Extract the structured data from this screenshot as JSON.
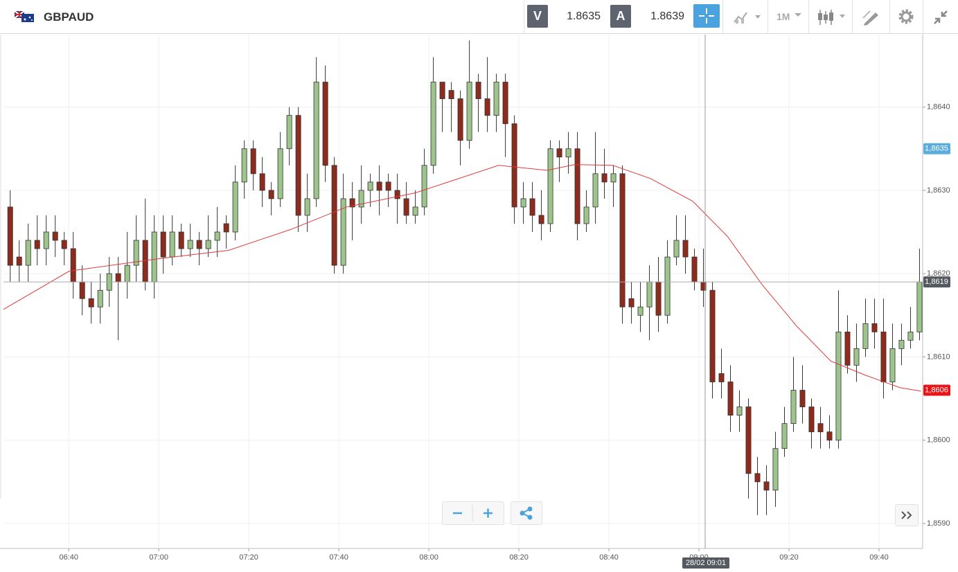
{
  "header": {
    "symbol": "GBPAUD",
    "sell_label": "V",
    "sell_price": 1.8635,
    "buy_label": "A",
    "buy_price": 1.8639,
    "timeframe": "1M"
  },
  "chart_data": {
    "type": "candlestick",
    "x": [
      387,
      389,
      391,
      393,
      395,
      397,
      399,
      401,
      403,
      405,
      407,
      409,
      411,
      413,
      415,
      417,
      419,
      421,
      423,
      425,
      427,
      429,
      431,
      433,
      435,
      437,
      439,
      441,
      443,
      445,
      447,
      449,
      451,
      453,
      455,
      457,
      459,
      461,
      463,
      465,
      467,
      469,
      471,
      473,
      475,
      477,
      479,
      481,
      483,
      485,
      487,
      489,
      491,
      493,
      495,
      497,
      499,
      501,
      503,
      505,
      507,
      509,
      511,
      513,
      515,
      517,
      519,
      521,
      523,
      525,
      527,
      529,
      531,
      533,
      535,
      537,
      539,
      541,
      543,
      545,
      547,
      549,
      551,
      553,
      555,
      557,
      559,
      561,
      563,
      565,
      567,
      569,
      571,
      573,
      575,
      577,
      579,
      581,
      583,
      585,
      587,
      589
    ],
    "open": [
      1.8628,
      1.8622,
      1.8621,
      1.8624,
      1.8623,
      1.8625,
      1.8624,
      1.8623,
      1.8619,
      1.8617,
      1.8616,
      1.8618,
      1.862,
      1.8619,
      1.8621,
      1.8624,
      1.8619,
      1.8625,
      1.8622,
      1.8625,
      1.8623,
      1.8624,
      1.8623,
      1.8624,
      1.8626,
      1.8625,
      1.8631,
      1.8635,
      1.8632,
      1.863,
      1.8629,
      1.8635,
      1.8639,
      1.8627,
      1.8629,
      1.8643,
      1.8633,
      1.8621,
      1.8629,
      1.8628,
      1.863,
      1.8631,
      1.8631,
      1.863,
      1.8629,
      1.8627,
      1.8628,
      1.8633,
      1.8643,
      1.8642,
      1.8641,
      1.8636,
      1.8643,
      1.8641,
      1.8639,
      1.8643,
      1.8638,
      1.8628,
      1.8629,
      1.8627,
      1.8626,
      1.8635,
      1.8634,
      1.8635,
      1.8626,
      1.8628,
      1.8632,
      1.8631,
      1.8632,
      1.8617,
      1.8615,
      1.8616,
      1.8619,
      1.8615,
      1.8622,
      1.8624,
      1.8622,
      1.8619,
      1.8618,
      1.8608,
      1.8607,
      1.8603,
      1.8604,
      1.8596,
      1.8595,
      1.8594,
      1.8599,
      1.8602,
      1.8606,
      1.8604,
      1.8602,
      1.8601,
      1.86,
      1.8613,
      1.8609,
      1.8611,
      1.8614,
      1.8613,
      1.8607,
      1.8611,
      1.8612,
      1.8613
    ],
    "high": [
      1.863,
      1.8624,
      1.8626,
      1.8627,
      1.8627,
      1.8627,
      1.8625,
      1.8625,
      1.8621,
      1.8619,
      1.862,
      1.8622,
      1.8622,
      1.8625,
      1.8627,
      1.8629,
      1.8627,
      1.8627,
      1.8627,
      1.8626,
      1.8626,
      1.8625,
      1.8627,
      1.8628,
      1.8627,
      1.8633,
      1.8636,
      1.8636,
      1.8634,
      1.8631,
      1.8637,
      1.864,
      1.864,
      1.8632,
      1.8646,
      1.8645,
      1.8634,
      1.8632,
      1.8631,
      1.8633,
      1.8632,
      1.8633,
      1.8632,
      1.8632,
      1.8631,
      1.863,
      1.8635,
      1.8646,
      1.8643,
      1.8643,
      1.8642,
      1.8648,
      1.8644,
      1.8646,
      1.8644,
      1.8644,
      1.8639,
      1.8631,
      1.8631,
      1.863,
      1.8636,
      1.8636,
      1.8637,
      1.8637,
      1.863,
      1.8637,
      1.8635,
      1.8633,
      1.8633,
      1.8619,
      1.8619,
      1.8621,
      1.8622,
      1.8624,
      1.8627,
      1.8627,
      1.8623,
      1.8623,
      1.8619,
      1.8611,
      1.8609,
      1.8606,
      1.8605,
      1.8598,
      1.8597,
      1.8601,
      1.8604,
      1.861,
      1.8609,
      1.8605,
      1.8604,
      1.8603,
      1.8618,
      1.8615,
      1.8614,
      1.8617,
      1.8617,
      1.8617,
      1.8614,
      1.8614,
      1.8616,
      1.8623
    ],
    "low": [
      1.8619,
      1.8619,
      1.8619,
      1.8621,
      1.8621,
      1.8622,
      1.8621,
      1.8617,
      1.8615,
      1.8614,
      1.8614,
      1.8616,
      1.8612,
      1.8617,
      1.8619,
      1.8618,
      1.8617,
      1.862,
      1.8621,
      1.8622,
      1.8622,
      1.8621,
      1.8622,
      1.8622,
      1.8623,
      1.8624,
      1.8629,
      1.863,
      1.8628,
      1.8627,
      1.8628,
      1.8633,
      1.8625,
      1.8625,
      1.8628,
      1.8631,
      1.862,
      1.862,
      1.8624,
      1.8626,
      1.8628,
      1.8627,
      1.8628,
      1.8626,
      1.8626,
      1.8626,
      1.8627,
      1.8632,
      1.8637,
      1.8637,
      1.8633,
      1.8635,
      1.8637,
      1.8637,
      1.8637,
      1.8634,
      1.8626,
      1.8626,
      1.8625,
      1.8624,
      1.8625,
      1.8631,
      1.8632,
      1.8624,
      1.8625,
      1.8626,
      1.8629,
      1.8628,
      1.8614,
      1.8614,
      1.8613,
      1.8612,
      1.8613,
      1.8614,
      1.8621,
      1.862,
      1.8618,
      1.8616,
      1.8605,
      1.8605,
      1.8601,
      1.8601,
      1.8593,
      1.8591,
      1.8591,
      1.8592,
      1.8598,
      1.8601,
      1.8602,
      1.8599,
      1.8599,
      1.8599,
      1.8599,
      1.8608,
      1.8607,
      1.861,
      1.8611,
      1.8605,
      1.8606,
      1.8609,
      1.8611,
      1.8612
    ],
    "close": [
      1.8621,
      1.8621,
      1.8624,
      1.8623,
      1.8625,
      1.8624,
      1.8623,
      1.8619,
      1.8617,
      1.8616,
      1.8618,
      1.862,
      1.8619,
      1.8621,
      1.8624,
      1.8619,
      1.8625,
      1.8622,
      1.8625,
      1.8623,
      1.8624,
      1.8623,
      1.8624,
      1.8625,
      1.8625,
      1.8631,
      1.8635,
      1.8632,
      1.863,
      1.8629,
      1.8635,
      1.8639,
      1.8627,
      1.8629,
      1.8643,
      1.8633,
      1.8621,
      1.8629,
      1.8628,
      1.863,
      1.8631,
      1.863,
      1.863,
      1.8629,
      1.8627,
      1.8628,
      1.8633,
      1.8643,
      1.8641,
      1.8641,
      1.8636,
      1.8643,
      1.8641,
      1.8639,
      1.8643,
      1.8638,
      1.8628,
      1.8629,
      1.8627,
      1.8626,
      1.8635,
      1.8634,
      1.8635,
      1.8626,
      1.8628,
      1.8632,
      1.8631,
      1.8632,
      1.8616,
      1.8616,
      1.8616,
      1.8619,
      1.8615,
      1.8622,
      1.8624,
      1.8622,
      1.8619,
      1.8618,
      1.8607,
      1.8607,
      1.8603,
      1.8604,
      1.8596,
      1.8595,
      1.8594,
      1.8599,
      1.8602,
      1.8606,
      1.8604,
      1.8601,
      1.8601,
      1.86,
      1.8613,
      1.8609,
      1.8611,
      1.8614,
      1.8613,
      1.8607,
      1.8611,
      1.8612,
      1.8613,
      1.8619
    ],
    "up_color": "#9cc48b",
    "down_color": "#8e2b1c",
    "moving_average": {
      "color": "#e03a3a",
      "x": [
        385.5,
        400.1,
        420.1,
        435.5,
        449.3,
        461.7,
        477,
        495.5,
        506.3,
        512.4,
        520.9,
        529.3,
        538.6,
        546.3,
        554,
        561.7,
        569.3,
        577,
        584.7,
        589.3
      ],
      "values": [
        1.86157,
        1.86203,
        1.86218,
        1.86228,
        1.86253,
        1.8628,
        1.86297,
        1.8633,
        1.86324,
        1.86331,
        1.8633,
        1.86314,
        1.86287,
        1.86245,
        1.86187,
        1.86137,
        1.86095,
        1.86078,
        1.86063,
        1.86059
      ]
    },
    "xlim": [
      385.5,
      589.7
    ],
    "ylim": [
      1.8587,
      1.86487
    ],
    "xticks": [
      {
        "value": 400,
        "label": "06:40"
      },
      {
        "value": 420,
        "label": "07:00"
      },
      {
        "value": 440,
        "label": "07:20"
      },
      {
        "value": 460,
        "label": "07:40"
      },
      {
        "value": 480,
        "label": "08:00"
      },
      {
        "value": 500,
        "label": "08:20"
      },
      {
        "value": 520,
        "label": "08:40"
      },
      {
        "value": 540,
        "label": "09:00"
      },
      {
        "value": 560,
        "label": "09:20"
      },
      {
        "value": 580,
        "label": "09:40"
      }
    ],
    "yticks": [
      {
        "value": 1.859,
        "label": "1,8590"
      },
      {
        "value": 1.86,
        "label": "1,8600"
      },
      {
        "value": 1.861,
        "label": "1,8610"
      },
      {
        "value": 1.862,
        "label": "1,8620"
      },
      {
        "value": 1.863,
        "label": "1,8630"
      },
      {
        "value": 1.864,
        "label": "1,8640"
      }
    ],
    "grid": true,
    "price_markers": [
      {
        "value": 1.8635,
        "label": "1,8635",
        "color": "#5aaedb"
      },
      {
        "value": 1.8619,
        "label": "1,8619",
        "color": "#555a60"
      },
      {
        "value": 1.8606,
        "label": "1,8606",
        "color": "#e8141a"
      }
    ],
    "crosshair_label": "28/02 09:01"
  }
}
